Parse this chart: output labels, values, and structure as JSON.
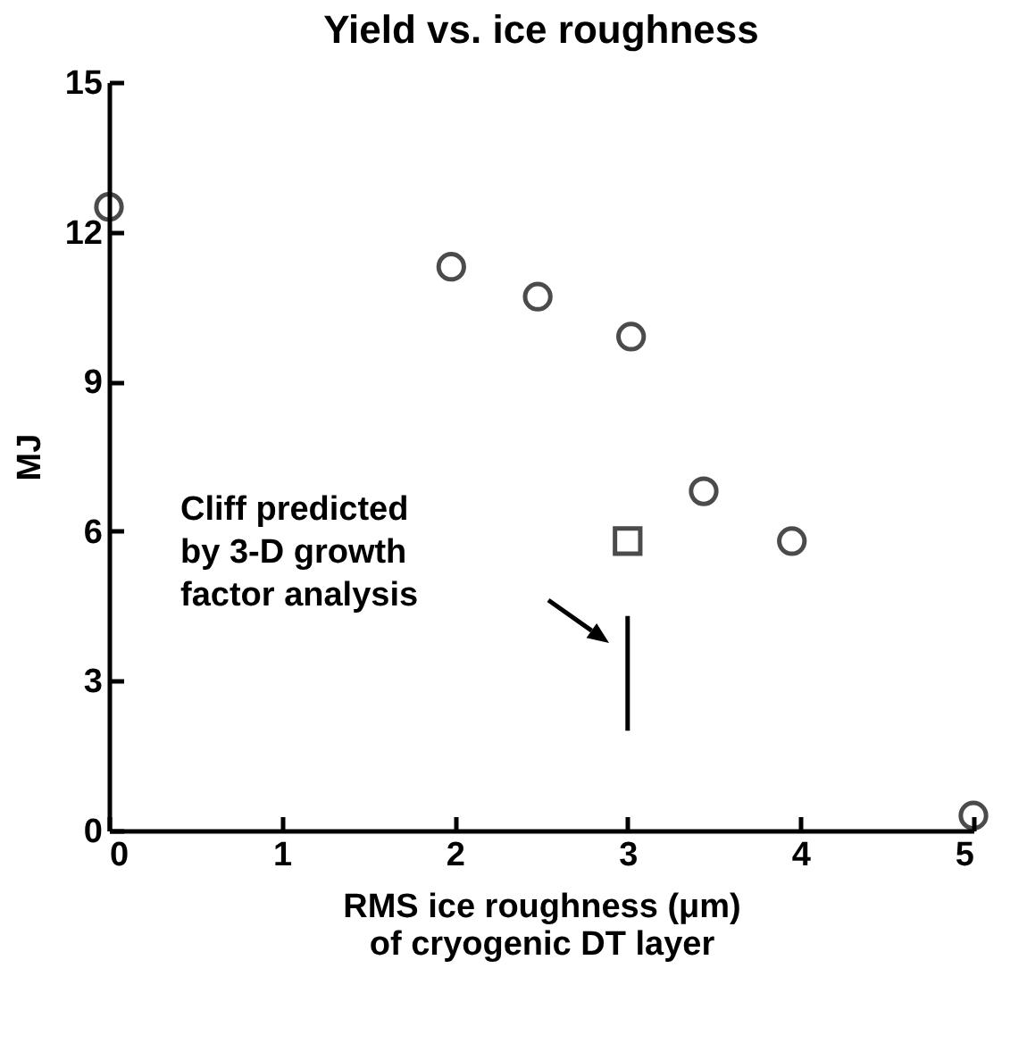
{
  "chart_data": {
    "type": "scatter",
    "title": "Yield vs. ice roughness",
    "xlabel": "RMS ice roughness (μm)\nof cryogenic DT layer",
    "ylabel": "MJ",
    "xlim": [
      0,
      5
    ],
    "xticks": [
      0,
      1,
      2,
      3,
      4,
      5
    ],
    "ylim": [
      0,
      15
    ],
    "yticks": [
      0,
      3,
      6,
      9,
      12,
      15
    ],
    "grid": false,
    "series": [
      {
        "color": "#000000",
        "marker": "circle",
        "x": [
          0,
          1.98,
          2.48,
          3.02,
          3.44,
          3.95,
          5
        ],
        "values": [
          12.5,
          11.3,
          10.7,
          9.9,
          6.8,
          5.8,
          0.3
        ]
      },
      {
        "color": "#000000",
        "marker": "square",
        "x": [
          3
        ],
        "values": [
          5.8
        ]
      },
      {
        "type": "line",
        "color": "#000000",
        "x": [
          3,
          3
        ],
        "values": [
          2,
          4.3
        ]
      }
    ],
    "annotations": [
      "Cliff predicted\nby 3-D growth\nfactor analysis"
    ]
  }
}
